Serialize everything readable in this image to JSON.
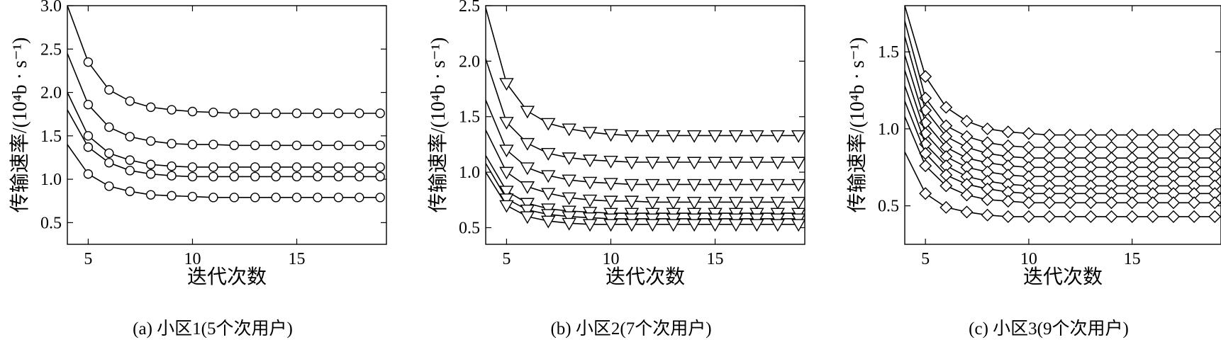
{
  "chart_data": [
    {
      "type": "line",
      "caption": "(a) 小区1(5个次用户)",
      "xlabel": "迭代次数",
      "ylabel": "传输速率/(10⁴b · s⁻¹)",
      "xlim": [
        4,
        19.3
      ],
      "ylim": [
        0.25,
        3.0
      ],
      "xticks": [
        5,
        10,
        15
      ],
      "yticks": [
        0.5,
        1.0,
        1.5,
        2.0,
        2.5,
        3.0
      ],
      "ytick_labels": [
        "0.5",
        "1.0",
        "1.5",
        "2.0",
        "2.5",
        "3.0"
      ],
      "marker": "circle",
      "grid": false,
      "x": [
        4,
        5,
        6,
        7,
        8,
        9,
        10,
        11,
        12,
        13,
        14,
        15,
        16,
        17,
        18,
        19
      ],
      "series": [
        {
          "values": [
            3.0,
            2.35,
            2.03,
            1.9,
            1.83,
            1.8,
            1.78,
            1.77,
            1.76,
            1.76,
            1.76,
            1.76,
            1.76,
            1.76,
            1.76,
            1.76
          ]
        },
        {
          "values": [
            2.45,
            1.86,
            1.6,
            1.49,
            1.44,
            1.41,
            1.4,
            1.4,
            1.39,
            1.39,
            1.39,
            1.39,
            1.39,
            1.39,
            1.39,
            1.39
          ]
        },
        {
          "values": [
            2.0,
            1.5,
            1.3,
            1.22,
            1.17,
            1.15,
            1.14,
            1.14,
            1.14,
            1.14,
            1.14,
            1.14,
            1.14,
            1.14,
            1.14,
            1.14
          ]
        },
        {
          "values": [
            1.8,
            1.37,
            1.19,
            1.1,
            1.06,
            1.04,
            1.03,
            1.03,
            1.03,
            1.03,
            1.03,
            1.03,
            1.03,
            1.03,
            1.03,
            1.03
          ]
        },
        {
          "values": [
            1.4,
            1.06,
            0.92,
            0.86,
            0.82,
            0.81,
            0.8,
            0.79,
            0.79,
            0.79,
            0.79,
            0.79,
            0.79,
            0.79,
            0.79,
            0.79
          ]
        }
      ]
    },
    {
      "type": "line",
      "caption": "(b) 小区2(7个次用户)",
      "xlabel": "迭代次数",
      "ylabel": "传输速率/(10⁴b · s⁻¹)",
      "xlim": [
        4,
        19.3
      ],
      "ylim": [
        0.35,
        2.5
      ],
      "xticks": [
        5,
        10,
        15
      ],
      "yticks": [
        0.5,
        1.0,
        1.5,
        2.0,
        2.5
      ],
      "ytick_labels": [
        "0.5",
        "1.0",
        "1.5",
        "2.0",
        "2.5"
      ],
      "marker": "triangle-down",
      "grid": false,
      "x": [
        4,
        5,
        6,
        7,
        8,
        9,
        10,
        11,
        12,
        13,
        14,
        15,
        16,
        17,
        18,
        19
      ],
      "series": [
        {
          "values": [
            2.48,
            1.8,
            1.55,
            1.44,
            1.39,
            1.36,
            1.34,
            1.33,
            1.33,
            1.33,
            1.33,
            1.33,
            1.33,
            1.33,
            1.33,
            1.33
          ]
        },
        {
          "values": [
            2.02,
            1.45,
            1.26,
            1.17,
            1.13,
            1.11,
            1.1,
            1.09,
            1.09,
            1.09,
            1.09,
            1.09,
            1.09,
            1.09,
            1.09,
            1.09
          ]
        },
        {
          "values": [
            1.65,
            1.2,
            1.04,
            0.97,
            0.93,
            0.91,
            0.9,
            0.89,
            0.89,
            0.89,
            0.89,
            0.89,
            0.89,
            0.89,
            0.89,
            0.89
          ]
        },
        {
          "values": [
            1.38,
            1.0,
            0.87,
            0.81,
            0.77,
            0.75,
            0.74,
            0.74,
            0.73,
            0.73,
            0.73,
            0.73,
            0.73,
            0.73,
            0.73,
            0.73
          ]
        },
        {
          "values": [
            1.15,
            0.83,
            0.72,
            0.67,
            0.65,
            0.64,
            0.63,
            0.63,
            0.63,
            0.63,
            0.63,
            0.63,
            0.63,
            0.63,
            0.63,
            0.63
          ]
        },
        {
          "values": [
            1.08,
            0.76,
            0.66,
            0.62,
            0.6,
            0.59,
            0.58,
            0.58,
            0.58,
            0.58,
            0.58,
            0.58,
            0.58,
            0.58,
            0.58,
            0.58
          ]
        },
        {
          "values": [
            1.0,
            0.7,
            0.6,
            0.56,
            0.54,
            0.53,
            0.53,
            0.53,
            0.53,
            0.53,
            0.53,
            0.53,
            0.53,
            0.53,
            0.53,
            0.53
          ]
        }
      ]
    },
    {
      "type": "line",
      "caption": "(c) 小区3(9个次用户)",
      "xlabel": "迭代次数",
      "ylabel": "传输速率/(10⁴b · s⁻¹)",
      "xlim": [
        4,
        19.3
      ],
      "ylim": [
        0.25,
        1.8
      ],
      "xticks": [
        5,
        10,
        15
      ],
      "yticks": [
        0.5,
        1.0,
        1.5
      ],
      "ytick_labels": [
        "0.5",
        "1.0",
        "1.5"
      ],
      "marker": "diamond",
      "grid": false,
      "x": [
        4,
        5,
        6,
        7,
        8,
        9,
        10,
        11,
        12,
        13,
        14,
        15,
        16,
        17,
        18,
        19
      ],
      "series": [
        {
          "values": [
            1.8,
            1.34,
            1.14,
            1.05,
            1.0,
            0.98,
            0.97,
            0.96,
            0.96,
            0.96,
            0.96,
            0.96,
            0.96,
            0.96,
            0.96,
            0.96
          ]
        },
        {
          "values": [
            1.7,
            1.2,
            1.02,
            0.95,
            0.91,
            0.89,
            0.88,
            0.88,
            0.88,
            0.88,
            0.88,
            0.88,
            0.88,
            0.88,
            0.88,
            0.88
          ]
        },
        {
          "values": [
            1.6,
            1.12,
            0.95,
            0.88,
            0.84,
            0.82,
            0.81,
            0.81,
            0.81,
            0.81,
            0.81,
            0.81,
            0.81,
            0.81,
            0.81,
            0.81
          ]
        },
        {
          "values": [
            1.48,
            1.04,
            0.88,
            0.81,
            0.78,
            0.76,
            0.75,
            0.75,
            0.75,
            0.75,
            0.75,
            0.75,
            0.75,
            0.75,
            0.75,
            0.75
          ]
        },
        {
          "values": [
            1.38,
            0.97,
            0.82,
            0.75,
            0.72,
            0.7,
            0.69,
            0.69,
            0.69,
            0.69,
            0.69,
            0.69,
            0.69,
            0.69,
            0.69,
            0.69
          ]
        },
        {
          "values": [
            1.28,
            0.9,
            0.76,
            0.69,
            0.66,
            0.64,
            0.63,
            0.63,
            0.63,
            0.63,
            0.63,
            0.63,
            0.63,
            0.63,
            0.63,
            0.63
          ]
        },
        {
          "values": [
            1.18,
            0.84,
            0.7,
            0.64,
            0.61,
            0.59,
            0.58,
            0.58,
            0.58,
            0.58,
            0.58,
            0.58,
            0.58,
            0.58,
            0.58,
            0.58
          ]
        },
        {
          "values": [
            1.08,
            0.76,
            0.63,
            0.57,
            0.54,
            0.53,
            0.52,
            0.52,
            0.52,
            0.52,
            0.52,
            0.52,
            0.52,
            0.52,
            0.52,
            0.52
          ]
        },
        {
          "values": [
            0.85,
            0.58,
            0.49,
            0.46,
            0.44,
            0.43,
            0.43,
            0.43,
            0.43,
            0.43,
            0.43,
            0.43,
            0.43,
            0.43,
            0.43,
            0.43
          ]
        }
      ]
    }
  ]
}
